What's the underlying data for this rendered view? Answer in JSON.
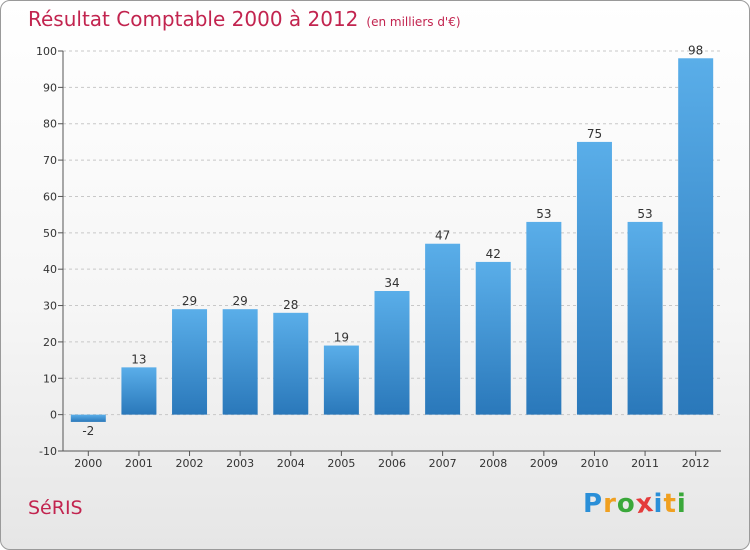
{
  "title": "Résultat Comptable 2000 à 2012",
  "subtitle": "(en milliers d'€)",
  "place": "SéRIS",
  "logo": {
    "letters": [
      "P",
      "r",
      "o",
      "x",
      "i",
      "t",
      "i"
    ]
  },
  "colors": {
    "bar_light": "#5aaee9",
    "bar_dark": "#2a78ba",
    "title": "#c2244f",
    "grid": "#c8c8c8"
  },
  "chart_data": {
    "type": "bar",
    "title": "Résultat Comptable 2000 à 2012",
    "subtitle": "(en milliers d'€)",
    "xlabel": "",
    "ylabel": "",
    "categories": [
      "2000",
      "2001",
      "2002",
      "2003",
      "2004",
      "2005",
      "2006",
      "2007",
      "2008",
      "2009",
      "2010",
      "2011",
      "2012"
    ],
    "values": [
      -2,
      13,
      29,
      29,
      28,
      19,
      34,
      47,
      42,
      53,
      75,
      53,
      98
    ],
    "ylim": [
      -10,
      100
    ],
    "yticks": [
      -10,
      0,
      10,
      20,
      30,
      40,
      50,
      60,
      70,
      80,
      90,
      100
    ],
    "grid": true,
    "value_labels": [
      "-2",
      "13",
      "29",
      "29",
      "28",
      "19",
      "34",
      "47",
      "42",
      "53",
      "75",
      "53",
      "98"
    ]
  }
}
